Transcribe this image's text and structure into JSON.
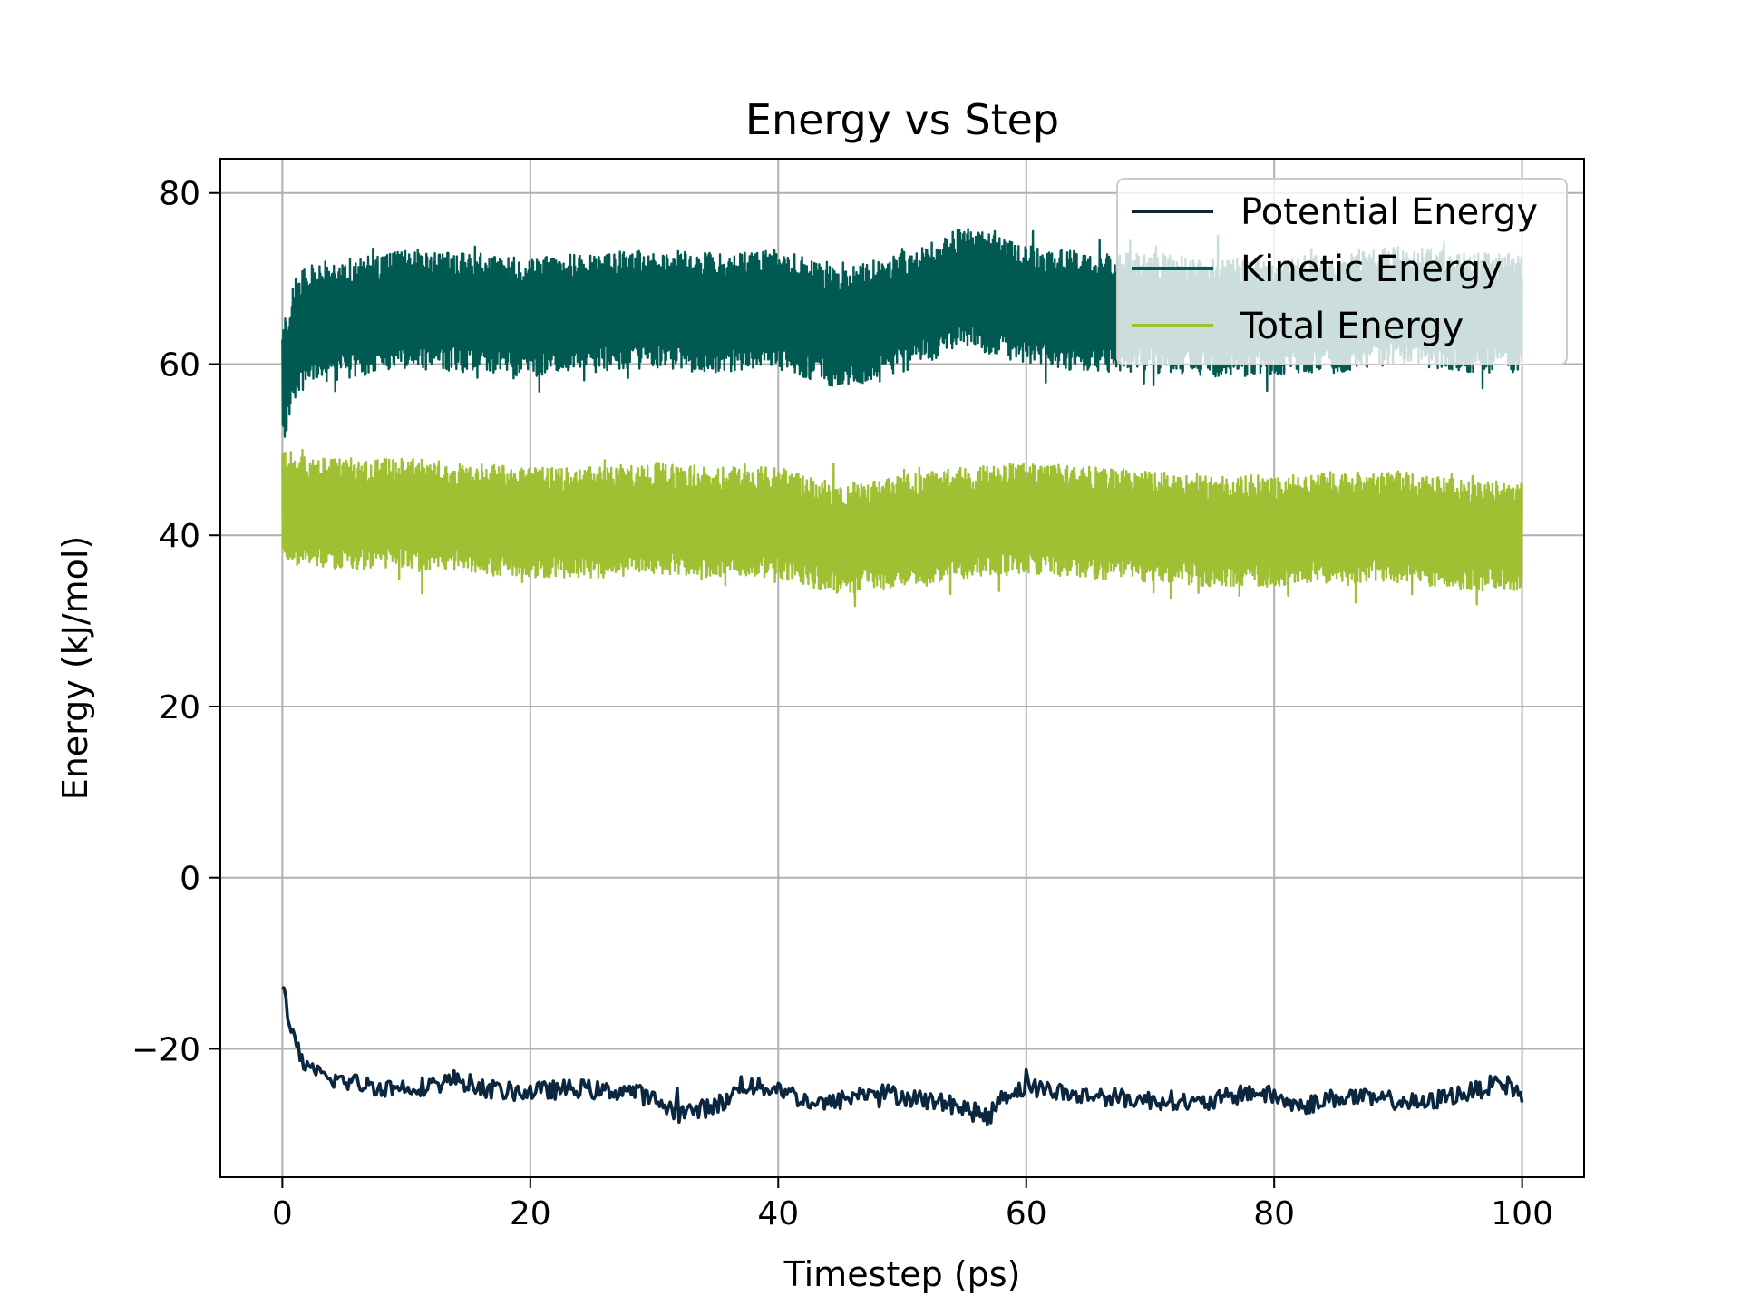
{
  "chart_data": {
    "type": "line",
    "title": "Energy vs Step",
    "xlabel": "Timestep (ps)",
    "ylabel": "Energy (kJ/mol)",
    "xlim": [
      -5,
      105
    ],
    "ylim": [
      -35,
      84
    ],
    "x_ticks": [
      0,
      20,
      40,
      60,
      80,
      100
    ],
    "y_ticks": [
      -20,
      0,
      20,
      40,
      60,
      80
    ],
    "x_tick_labels": [
      "0",
      "20",
      "40",
      "60",
      "80",
      "100"
    ],
    "y_tick_labels": [
      "−20",
      "0",
      "20",
      "40",
      "60",
      "80"
    ],
    "grid": true,
    "legend_position": "top-right",
    "colors": {
      "potential": "#0b2740",
      "kinetic": "#005a52",
      "total": "#a0c034",
      "grid": "#b0b0b0"
    },
    "series": [
      {
        "name": "Potential Energy",
        "color": "#0b2740",
        "x": [
          0,
          0.5,
          1,
          1.5,
          2,
          3,
          4,
          5,
          6,
          8,
          10,
          12,
          14,
          16,
          18,
          20,
          22,
          24,
          26,
          28,
          30,
          32,
          34,
          36,
          37,
          38,
          40,
          42,
          44,
          46,
          48,
          50,
          52,
          54,
          56,
          57,
          58,
          60,
          62,
          64,
          66,
          68,
          70,
          72,
          74,
          76,
          78,
          80,
          82,
          84,
          86,
          88,
          90,
          92,
          94,
          96,
          98,
          99,
          100
        ],
        "values": [
          -12.5,
          -16,
          -19.5,
          -21,
          -22.5,
          -23,
          -23.5,
          -23.8,
          -24,
          -24.5,
          -24.5,
          -24.3,
          -23.5,
          -24.5,
          -25,
          -25,
          -24.8,
          -24.6,
          -25,
          -24.8,
          -26,
          -27.5,
          -27,
          -26,
          -24,
          -24.5,
          -24.5,
          -26,
          -26.5,
          -25.5,
          -25,
          -25.5,
          -26,
          -26.5,
          -27.5,
          -28,
          -25.5,
          -24.5,
          -24.8,
          -25.5,
          -25.5,
          -25.8,
          -26,
          -26,
          -26.5,
          -25.8,
          -25,
          -25.5,
          -26.8,
          -26,
          -25.5,
          -26,
          -26,
          -26.5,
          -25.5,
          -25,
          -24,
          -24.3,
          -25.5
        ]
      },
      {
        "name": "Kinetic Energy",
        "color": "#005a52",
        "x": [
          0,
          0.5,
          1,
          2,
          4,
          6,
          8,
          10,
          15,
          20,
          25,
          30,
          35,
          40,
          45,
          50,
          55,
          60,
          65,
          70,
          75,
          80,
          85,
          90,
          95,
          100
        ],
        "values": [
          57,
          60,
          63,
          64.5,
          65,
          65.5,
          66,
          66.5,
          66,
          65.5,
          66,
          66.5,
          66,
          66.5,
          64,
          66,
          69,
          67,
          66,
          66,
          65.5,
          65.5,
          66,
          67,
          66,
          66
        ],
        "band_halfwidth": 7
      },
      {
        "name": "Total Energy",
        "color": "#a0c034",
        "x": [
          0,
          0.5,
          1,
          2,
          4,
          6,
          8,
          10,
          15,
          20,
          25,
          30,
          35,
          40,
          45,
          50,
          55,
          60,
          65,
          70,
          75,
          80,
          85,
          90,
          95,
          100
        ],
        "values": [
          44,
          43.5,
          43,
          42.5,
          42.5,
          42.5,
          42.5,
          42.5,
          42,
          41.5,
          41.5,
          42,
          41.5,
          41.5,
          39.5,
          40.5,
          41.5,
          42,
          41.5,
          41,
          40.5,
          40.5,
          41,
          41,
          40,
          40
        ],
        "band_halfwidth": 6.5
      }
    ]
  }
}
